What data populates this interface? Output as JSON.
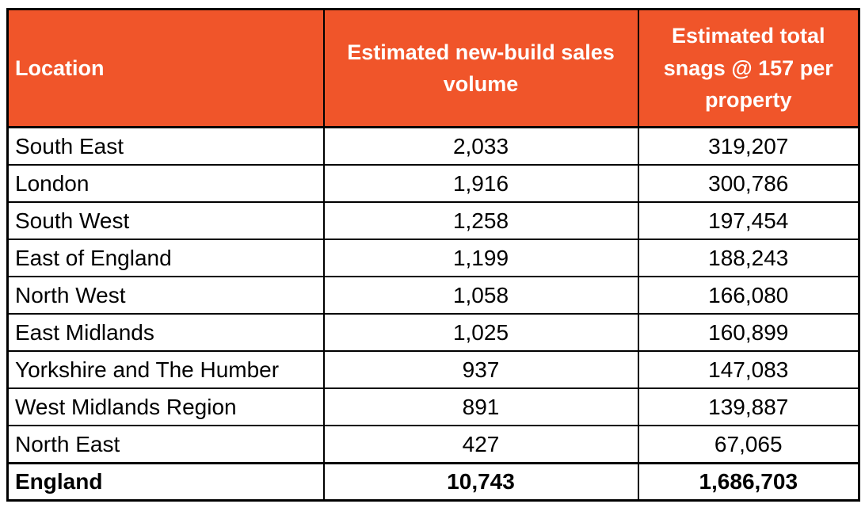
{
  "colors": {
    "header_bg": "#F0552A",
    "header_text": "#FFFFFF",
    "border": "#000000",
    "body_text": "#000000"
  },
  "table": {
    "columns": [
      {
        "label": "Location"
      },
      {
        "label": "Estimated new-build sales volume"
      },
      {
        "label": "Estimated total snags @ 157 per property"
      }
    ],
    "rows": [
      {
        "location": "South East",
        "volume": "2,033",
        "snags": "319,207"
      },
      {
        "location": "London",
        "volume": "1,916",
        "snags": "300,786"
      },
      {
        "location": "South West",
        "volume": "1,258",
        "snags": "197,454"
      },
      {
        "location": "East of England",
        "volume": "1,199",
        "snags": "188,243"
      },
      {
        "location": "North West",
        "volume": "1,058",
        "snags": "166,080"
      },
      {
        "location": "East Midlands",
        "volume": "1,025",
        "snags": "160,899"
      },
      {
        "location": "Yorkshire and The Humber",
        "volume": "937",
        "snags": "147,083"
      },
      {
        "location": "West Midlands Region",
        "volume": "891",
        "snags": "139,887"
      },
      {
        "location": "North East",
        "volume": "427",
        "snags": "67,065"
      }
    ],
    "total_row": {
      "location": "England",
      "volume": "10,743",
      "snags": "1,686,703"
    }
  }
}
